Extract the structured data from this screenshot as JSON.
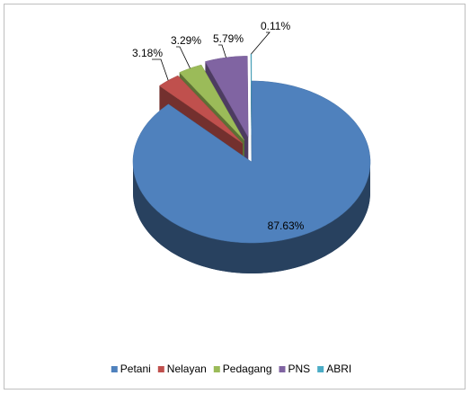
{
  "chart_data": {
    "type": "pie",
    "categories": [
      "Petani",
      "Nelayan",
      "Pedagang",
      "PNS",
      "ABRI"
    ],
    "values": [
      87.63,
      3.18,
      3.29,
      5.79,
      0.11
    ],
    "value_labels": [
      "87.63%",
      "3.18%",
      "3.29%",
      "5.79%",
      "0.11%"
    ],
    "colors": [
      "#4f81bd",
      "#c0504d",
      "#9bbb59",
      "#8064a2",
      "#4bacc6"
    ],
    "legend": "bottom"
  }
}
